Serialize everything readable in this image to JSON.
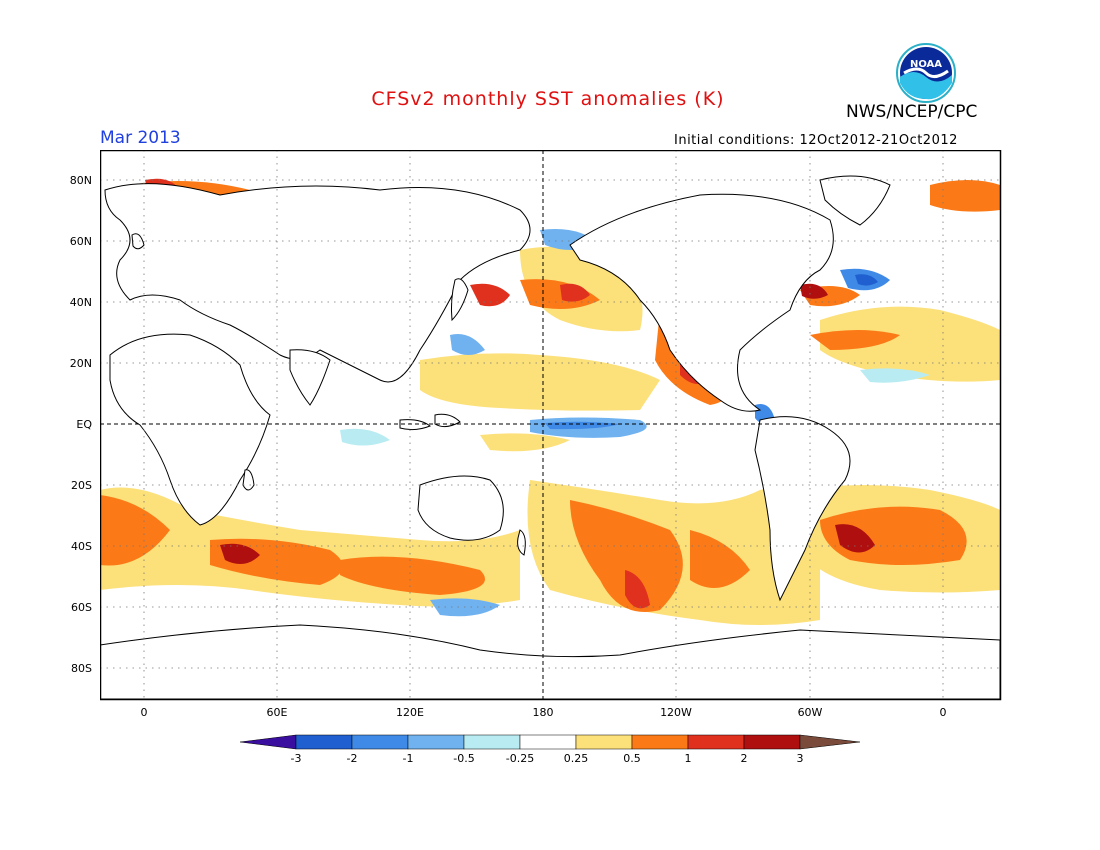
{
  "header": {
    "title": "CFSv2 monthly SST anomalies (K)",
    "organization": "NWS/NCEP/CPC",
    "date": "Mar 2013",
    "initial_conditions": "Initial conditions: 12Oct2012-21Oct2012",
    "logo_text": "NOAA"
  },
  "map": {
    "lat_labels": [
      "80N",
      "60N",
      "40N",
      "20N",
      "EQ",
      "20S",
      "40S",
      "60S",
      "80S"
    ],
    "lon_labels": [
      "0",
      "60E",
      "120E",
      "180",
      "120W",
      "60W",
      "0"
    ]
  },
  "colorbar": {
    "labels": [
      "-3",
      "-2",
      "-1",
      "-0.5",
      "-0.25",
      "0.25",
      "0.5",
      "1",
      "2",
      "3"
    ],
    "colors": [
      "#3a0fa0",
      "#1f5fcf",
      "#3f8ae6",
      "#70b2f0",
      "#b8ecf2",
      "#ffffff",
      "#fce07a",
      "#fb7a17",
      "#e0301e",
      "#b00f0f",
      "#7a4a3a"
    ]
  }
}
